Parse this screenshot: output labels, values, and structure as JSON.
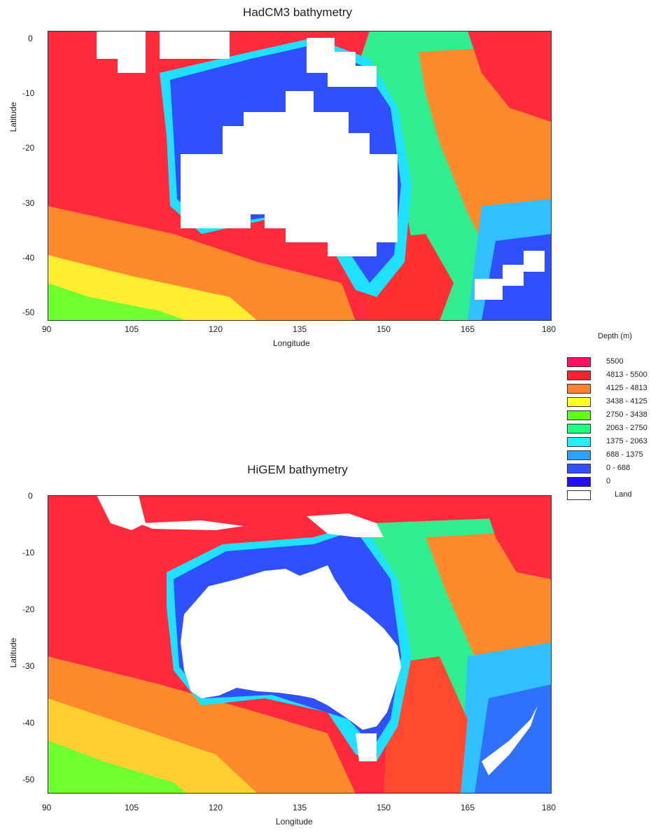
{
  "charts": [
    {
      "title": "HadCM3 bathymetry",
      "xlabel": "Longitude",
      "ylabel": "Latitude"
    },
    {
      "title": "HiGEM bathymetry",
      "xlabel": "Longitude",
      "ylabel": "Latitude"
    }
  ],
  "legend": {
    "title": "Depth (m)",
    "items": [
      {
        "label": "5500",
        "color": "#ff1060"
      },
      {
        "label": "4813 - 5500",
        "color": "#ff2030"
      },
      {
        "label": "4125 - 4813",
        "color": "#ff8030"
      },
      {
        "label": "3438 - 4125",
        "color": "#ffff20"
      },
      {
        "label": "2750 - 3438",
        "color": "#60ff20"
      },
      {
        "label": "2063 - 2750",
        "color": "#20ff80"
      },
      {
        "label": "1375 - 2063",
        "color": "#20f0ff"
      },
      {
        "label": "688 - 1375",
        "color": "#30a0ff"
      },
      {
        "label": "0 -  688",
        "color": "#3050ff"
      },
      {
        "label": "0",
        "color": "#2010ff"
      },
      {
        "label": "Land",
        "color": "#ffffff"
      }
    ]
  },
  "chart_data": [
    {
      "type": "heatmap",
      "title": "HadCM3 bathymetry",
      "xlabel": "Longitude",
      "ylabel": "Latitude",
      "xlim": [
        90,
        180
      ],
      "ylim": [
        -51,
        1
      ],
      "xticks": [
        90,
        105,
        120,
        135,
        150,
        165,
        180
      ],
      "yticks": [
        0,
        -10,
        -20,
        -30,
        -40,
        -50
      ]
    },
    {
      "type": "heatmap",
      "title": "HiGEM bathymetry",
      "xlabel": "Longitude",
      "ylabel": "Latitude",
      "xlim": [
        90,
        180
      ],
      "ylim": [
        -51,
        1
      ],
      "xticks": [
        90,
        105,
        120,
        135,
        150,
        165,
        180
      ],
      "yticks": [
        0,
        -10,
        -20,
        -30,
        -40,
        -50
      ]
    }
  ]
}
